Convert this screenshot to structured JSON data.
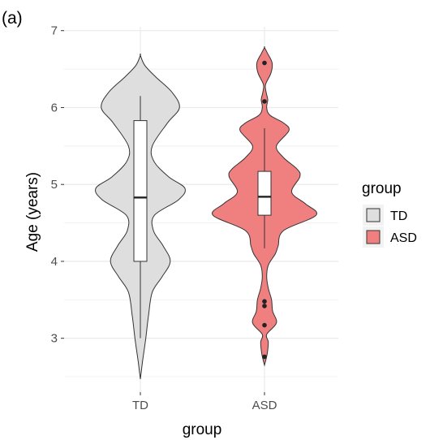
{
  "chart_data": {
    "panel_label": "(a)",
    "type": "violin",
    "overlay": "boxplot",
    "xlabel": "group",
    "ylabel": "Age (years)",
    "categories": [
      "TD",
      "ASD"
    ],
    "ylim": [
      2.3,
      7.05
    ],
    "y_ticks": [
      "3",
      "4",
      "5",
      "6",
      "7"
    ],
    "grid": true,
    "legend": {
      "title": "group",
      "position": "right",
      "entries": [
        "TD",
        "ASD"
      ]
    },
    "series": [
      {
        "category": "TD",
        "color": "#dedede",
        "box": {
          "whisker_low": 3.0,
          "q1": 4.0,
          "median": 4.83,
          "q3": 5.83,
          "whisker_high": 6.15
        },
        "outliers": [],
        "density": [
          [
            2.47,
            0.0
          ],
          [
            2.7,
            0.04
          ],
          [
            3.0,
            0.1
          ],
          [
            3.3,
            0.15
          ],
          [
            3.6,
            0.22
          ],
          [
            3.8,
            0.4
          ],
          [
            4.0,
            0.55
          ],
          [
            4.2,
            0.42
          ],
          [
            4.4,
            0.24
          ],
          [
            4.6,
            0.26
          ],
          [
            4.8,
            0.7
          ],
          [
            4.95,
            0.82
          ],
          [
            5.1,
            0.52
          ],
          [
            5.3,
            0.25
          ],
          [
            5.5,
            0.22
          ],
          [
            5.8,
            0.5
          ],
          [
            6.0,
            0.72
          ],
          [
            6.2,
            0.58
          ],
          [
            6.4,
            0.28
          ],
          [
            6.55,
            0.08
          ],
          [
            6.68,
            0.0
          ]
        ]
      },
      {
        "category": "ASD",
        "color": "#f08080",
        "box": {
          "whisker_low": 4.17,
          "q1": 4.6,
          "median": 4.84,
          "q3": 5.17,
          "whisker_high": 5.73
        },
        "outliers": [
          2.76,
          3.17,
          3.42,
          3.48,
          6.08,
          6.58
        ],
        "density": [
          [
            2.65,
            0.0
          ],
          [
            2.8,
            0.05
          ],
          [
            2.95,
            0.07
          ],
          [
            3.05,
            0.04
          ],
          [
            3.2,
            0.22
          ],
          [
            3.35,
            0.15
          ],
          [
            3.5,
            0.13
          ],
          [
            3.65,
            0.07
          ],
          [
            3.8,
            0.04
          ],
          [
            3.95,
            0.07
          ],
          [
            4.1,
            0.2
          ],
          [
            4.2,
            0.25
          ],
          [
            4.4,
            0.35
          ],
          [
            4.6,
            0.95
          ],
          [
            4.75,
            0.75
          ],
          [
            4.9,
            0.5
          ],
          [
            5.1,
            0.65
          ],
          [
            5.2,
            0.6
          ],
          [
            5.35,
            0.35
          ],
          [
            5.5,
            0.22
          ],
          [
            5.7,
            0.45
          ],
          [
            5.8,
            0.35
          ],
          [
            5.9,
            0.1
          ],
          [
            6.0,
            0.04
          ],
          [
            6.1,
            0.06
          ],
          [
            6.2,
            0.03
          ],
          [
            6.3,
            0.02
          ],
          [
            6.45,
            0.12
          ],
          [
            6.58,
            0.14
          ],
          [
            6.7,
            0.06
          ],
          [
            6.78,
            0.0
          ]
        ]
      }
    ]
  }
}
